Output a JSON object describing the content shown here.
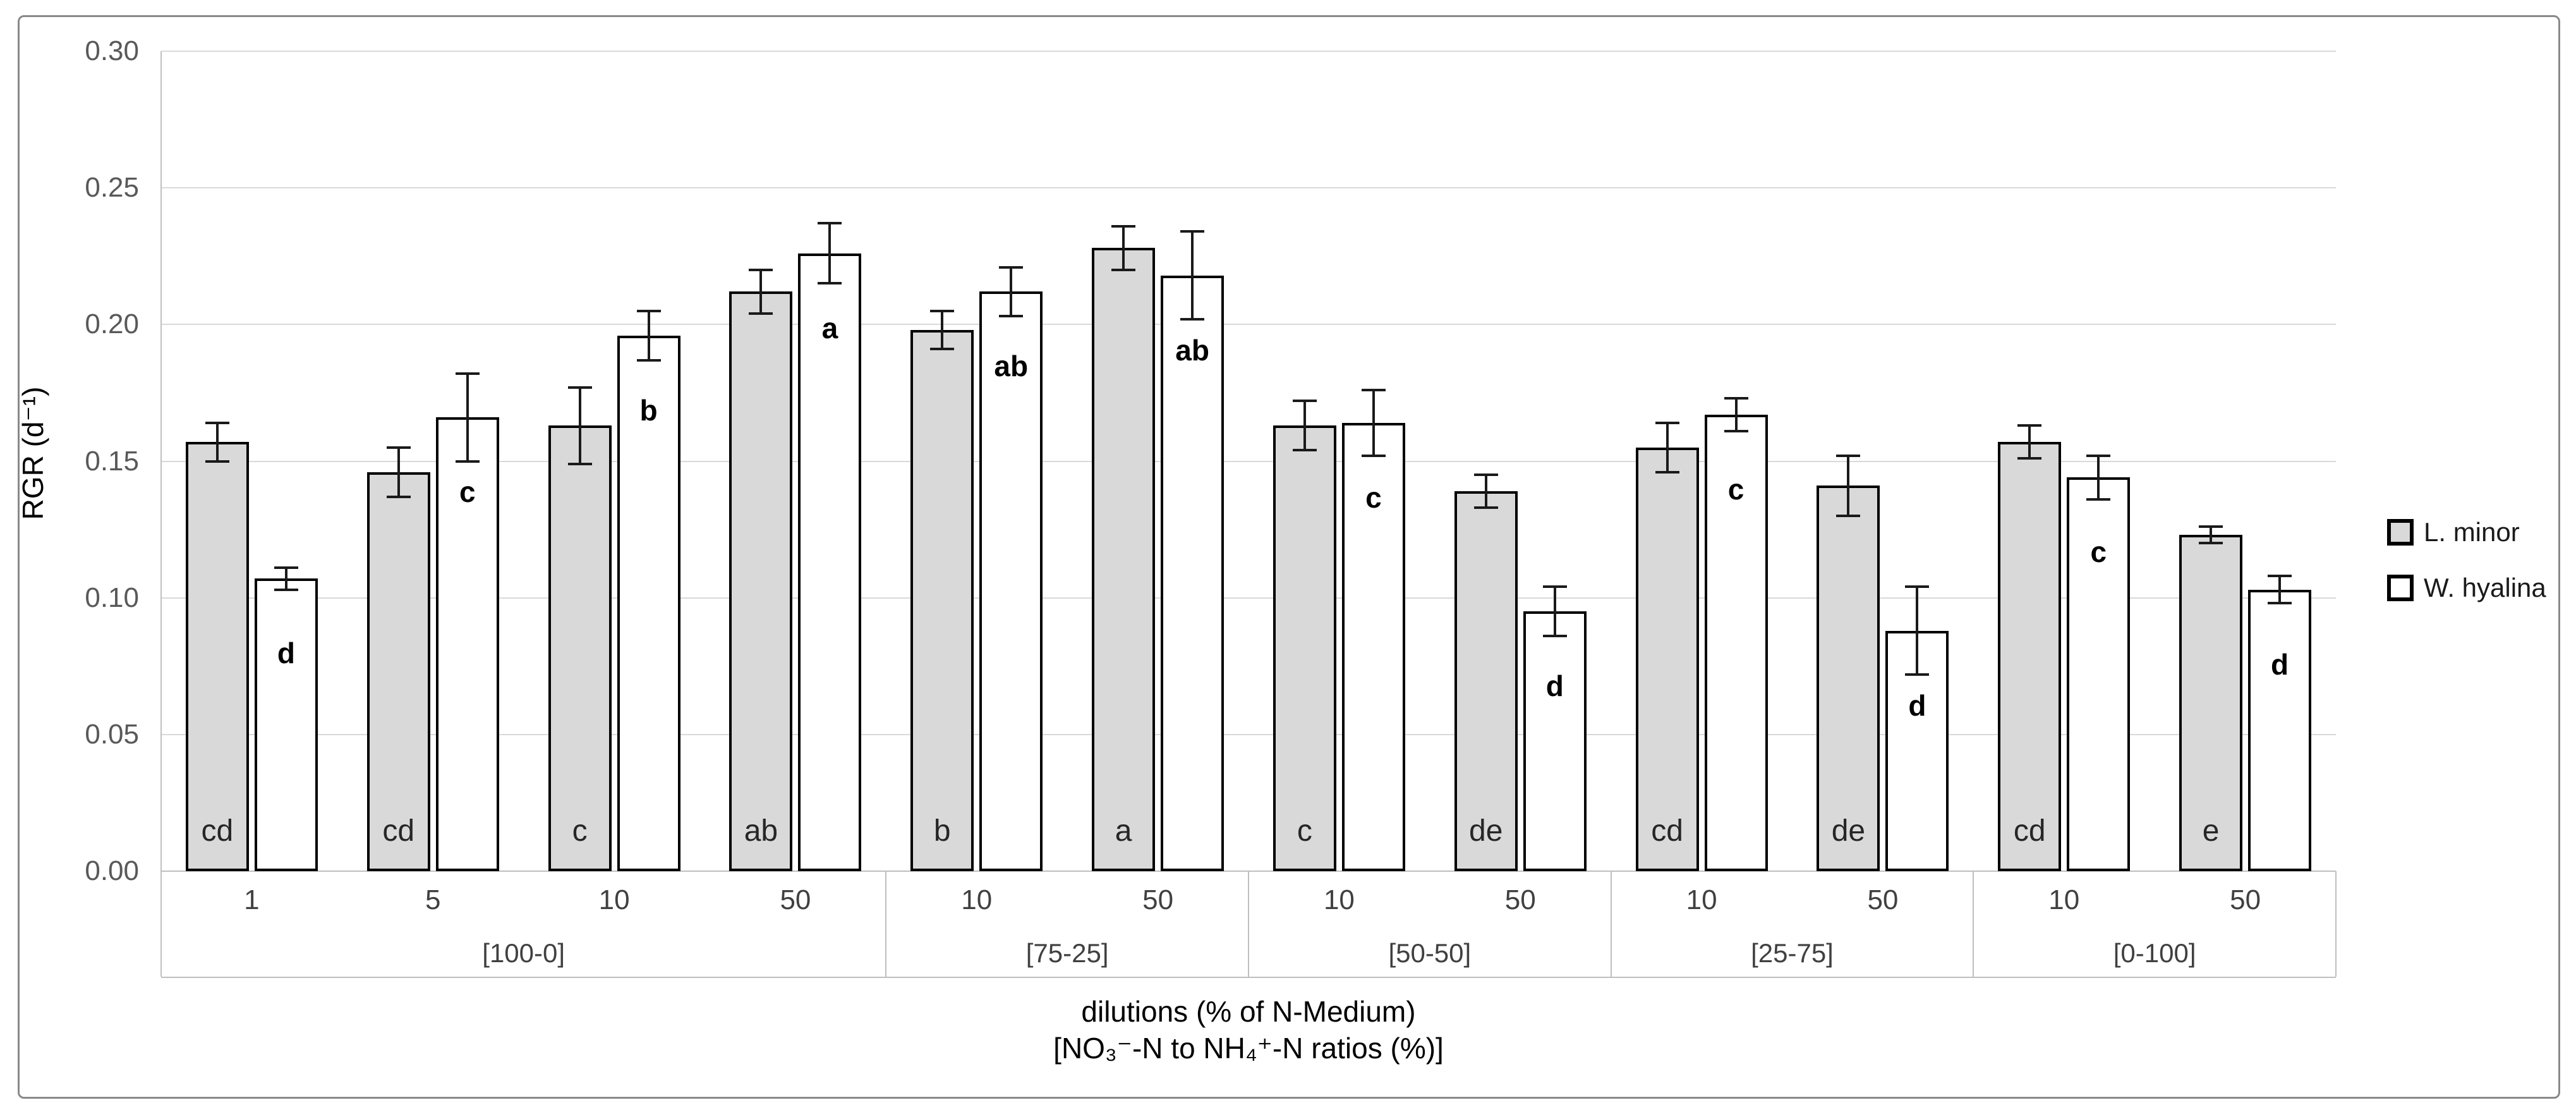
{
  "chart_data": {
    "type": "bar",
    "title": "",
    "ylabel": "RGR (d⁻¹)",
    "xlabel_line1": "dilutions (% of N-Medium)",
    "xlabel_line2": "[NO₃⁻-N to NH₄⁺-N ratios (%)]",
    "ylim": [
      0,
      0.3
    ],
    "ytick_step": 0.05,
    "ytick_labels": [
      "0.00",
      "0.05",
      "0.10",
      "0.15",
      "0.20",
      "0.25",
      "0.30"
    ],
    "grid": true,
    "legend_position": "right",
    "series": [
      {
        "name": "L. minor"
      },
      {
        "name": "W. hyalina"
      }
    ],
    "groups": [
      {
        "ratio_label": "[100-0]",
        "dilutions": [
          {
            "label": "1",
            "lminor": {
              "value": 0.157,
              "err": 0.007,
              "letter": "cd"
            },
            "whyalina": {
              "value": 0.107,
              "err": 0.004,
              "letter": "d"
            }
          },
          {
            "label": "5",
            "lminor": {
              "value": 0.146,
              "err": 0.009,
              "letter": "cd"
            },
            "whyalina": {
              "value": 0.166,
              "err": 0.016,
              "letter": "c"
            }
          },
          {
            "label": "10",
            "lminor": {
              "value": 0.163,
              "err": 0.014,
              "letter": "c"
            },
            "whyalina": {
              "value": 0.196,
              "err": 0.009,
              "letter": "b"
            }
          },
          {
            "label": "50",
            "lminor": {
              "value": 0.212,
              "err": 0.008,
              "letter": "ab"
            },
            "whyalina": {
              "value": 0.226,
              "err": 0.011,
              "letter": "a"
            }
          }
        ]
      },
      {
        "ratio_label": "[75-25]",
        "dilutions": [
          {
            "label": "10",
            "lminor": {
              "value": 0.198,
              "err": 0.007,
              "letter": "b"
            },
            "whyalina": {
              "value": 0.212,
              "err": 0.009,
              "letter": "ab"
            }
          },
          {
            "label": "50",
            "lminor": {
              "value": 0.228,
              "err": 0.008,
              "letter": "a"
            },
            "whyalina": {
              "value": 0.218,
              "err": 0.016,
              "letter": "ab"
            }
          }
        ]
      },
      {
        "ratio_label": "[50-50]",
        "dilutions": [
          {
            "label": "10",
            "lminor": {
              "value": 0.163,
              "err": 0.009,
              "letter": "c"
            },
            "whyalina": {
              "value": 0.164,
              "err": 0.012,
              "letter": "c"
            }
          },
          {
            "label": "50",
            "lminor": {
              "value": 0.139,
              "err": 0.006,
              "letter": "de"
            },
            "whyalina": {
              "value": 0.095,
              "err": 0.009,
              "letter": "d"
            }
          }
        ]
      },
      {
        "ratio_label": "[25-75]",
        "dilutions": [
          {
            "label": "10",
            "lminor": {
              "value": 0.155,
              "err": 0.009,
              "letter": "cd"
            },
            "whyalina": {
              "value": 0.167,
              "err": 0.006,
              "letter": "c"
            }
          },
          {
            "label": "50",
            "lminor": {
              "value": 0.141,
              "err": 0.011,
              "letter": "de"
            },
            "whyalina": {
              "value": 0.088,
              "err": 0.016,
              "letter": "d"
            }
          }
        ]
      },
      {
        "ratio_label": "[0-100]",
        "dilutions": [
          {
            "label": "10",
            "lminor": {
              "value": 0.157,
              "err": 0.006,
              "letter": "cd"
            },
            "whyalina": {
              "value": 0.144,
              "err": 0.008,
              "letter": "c"
            }
          },
          {
            "label": "50",
            "lminor": {
              "value": 0.123,
              "err": 0.003,
              "letter": "e"
            },
            "whyalina": {
              "value": 0.103,
              "err": 0.005,
              "letter": "d"
            }
          }
        ]
      }
    ],
    "colors": {
      "bar_fill_lminor": "#d9d9d9",
      "bar_fill_whyalina": "#ffffff",
      "bar_border": "#000000",
      "gridline": "#d9d9d9",
      "axis_line": "#bfbfbf",
      "tick_text": "#595959",
      "label_text": "#404040",
      "outer_border": "#898989"
    }
  },
  "legend": {
    "lminor_label": "L. minor",
    "whyalina_label": "W. hyalina"
  },
  "axes": {
    "y_title": "RGR (d⁻¹)",
    "x_title_line1": "dilutions (% of N-Medium)",
    "x_title_line2": "[NO₃⁻-N to NH₄⁺-N ratios (%)]"
  }
}
